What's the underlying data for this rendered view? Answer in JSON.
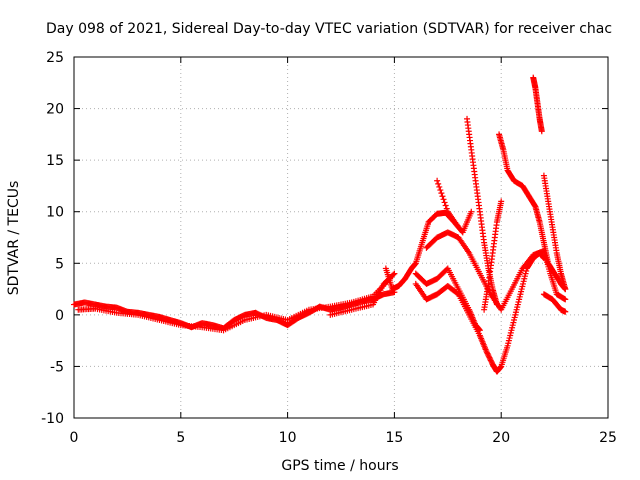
{
  "chart_data": {
    "type": "scatter",
    "title": "Day 098 of 2021, Sidereal Day-to-day VTEC variation (SDTVAR) for receiver chac",
    "xlabel": "GPS time / hours",
    "ylabel": "SDTVAR / TECUs",
    "xlim": [
      0,
      25
    ],
    "ylim": [
      -10,
      25
    ],
    "xticks": [
      0,
      5,
      10,
      15,
      20,
      25
    ],
    "yticks": [
      -10,
      -5,
      0,
      5,
      10,
      15,
      20,
      25
    ],
    "xtick_labels": [
      "0",
      "5",
      "10",
      "15",
      "20",
      "25"
    ],
    "ytick_labels": [
      "-10",
      "-5",
      "0",
      "5",
      "10",
      "15",
      "20",
      "25"
    ],
    "grid": true,
    "marker": "+",
    "color": "#ff0000",
    "series": [
      {
        "name": "trace-0",
        "points": [
          [
            0,
            1.0
          ],
          [
            0.5,
            1.2
          ],
          [
            1.0,
            1.0
          ],
          [
            1.5,
            0.8
          ],
          [
            2.0,
            0.7
          ],
          [
            2.5,
            0.3
          ],
          [
            3.0,
            0.2
          ],
          [
            3.5,
            0.0
          ],
          [
            4.0,
            -0.2
          ],
          [
            4.5,
            -0.5
          ],
          [
            5.0,
            -0.8
          ],
          [
            5.5,
            -1.2
          ],
          [
            6.0,
            -0.8
          ],
          [
            6.5,
            -1.0
          ],
          [
            7.0,
            -1.3
          ],
          [
            7.5,
            -0.5
          ],
          [
            8.0,
            0.0
          ],
          [
            8.5,
            0.2
          ],
          [
            9.0,
            -0.3
          ],
          [
            9.5,
            -0.5
          ],
          [
            10.0,
            -1.0
          ],
          [
            10.5,
            -0.3
          ],
          [
            11.0,
            0.2
          ],
          [
            11.5,
            0.8
          ],
          [
            12.0,
            0.5
          ],
          [
            12.5,
            0.7
          ],
          [
            13.0,
            1.0
          ],
          [
            13.5,
            1.3
          ],
          [
            14.0,
            1.5
          ],
          [
            14.5,
            2.0
          ],
          [
            15.0,
            2.2
          ]
        ]
      },
      {
        "name": "trace-1",
        "points": [
          [
            0.2,
            0.5
          ],
          [
            1.0,
            0.6
          ],
          [
            2.0,
            0.2
          ],
          [
            3.0,
            0.0
          ],
          [
            4.0,
            -0.5
          ],
          [
            5.0,
            -1.0
          ],
          [
            6.0,
            -1.2
          ],
          [
            7.0,
            -1.5
          ],
          [
            8.0,
            -0.5
          ],
          [
            9.0,
            0.0
          ],
          [
            10.0,
            -0.5
          ],
          [
            11.0,
            0.5
          ],
          [
            12.0,
            0.8
          ],
          [
            13.0,
            1.2
          ],
          [
            14.0,
            1.8
          ],
          [
            14.8,
            3.5
          ]
        ]
      },
      {
        "name": "trace-2",
        "points": [
          [
            14.6,
            4.5
          ],
          [
            14.9,
            2.5
          ],
          [
            15.2,
            2.8
          ],
          [
            15.5,
            3.5
          ],
          [
            15.8,
            4.5
          ],
          [
            16.0,
            5.0
          ],
          [
            16.3,
            7.0
          ],
          [
            16.6,
            9.0
          ],
          [
            17.0,
            9.8
          ],
          [
            17.4,
            9.9
          ],
          [
            17.8,
            9.0
          ],
          [
            18.2,
            8.0
          ],
          [
            18.6,
            10.0
          ]
        ]
      },
      {
        "name": "trace-3",
        "points": [
          [
            17.0,
            13.0
          ],
          [
            17.5,
            10.0
          ],
          [
            18.0,
            8.5
          ]
        ]
      },
      {
        "name": "trace-4",
        "points": [
          [
            16.0,
            3.0
          ],
          [
            16.5,
            1.5
          ],
          [
            17.0,
            2.0
          ],
          [
            17.5,
            2.8
          ],
          [
            18.0,
            2.0
          ],
          [
            18.5,
            0.0
          ],
          [
            19.0,
            -2.0
          ],
          [
            19.3,
            -3.5
          ],
          [
            19.6,
            -4.8
          ],
          [
            19.8,
            -5.5
          ],
          [
            20.0,
            -5.0
          ],
          [
            20.3,
            -3.0
          ],
          [
            20.6,
            -0.5
          ],
          [
            20.9,
            2.0
          ],
          [
            21.2,
            4.5
          ],
          [
            21.5,
            5.5
          ],
          [
            21.8,
            6.0
          ],
          [
            22.0,
            5.5
          ]
        ]
      },
      {
        "name": "trace-5",
        "points": [
          [
            16.5,
            6.5
          ],
          [
            17.0,
            7.5
          ],
          [
            17.5,
            8.0
          ],
          [
            18.0,
            7.5
          ],
          [
            18.5,
            6.0
          ],
          [
            19.0,
            4.0
          ],
          [
            19.5,
            2.0
          ],
          [
            20.0,
            0.5
          ],
          [
            20.5,
            2.5
          ],
          [
            21.0,
            4.5
          ],
          [
            21.5,
            5.8
          ],
          [
            22.0,
            6.2
          ],
          [
            22.3,
            4.0
          ],
          [
            22.6,
            2.0
          ],
          [
            23.0,
            1.5
          ]
        ]
      },
      {
        "name": "trace-6",
        "points": [
          [
            16.0,
            4.0
          ],
          [
            16.5,
            3.0
          ],
          [
            17.0,
            3.5
          ],
          [
            17.5,
            4.5
          ],
          [
            18.0,
            2.5
          ],
          [
            18.5,
            0.5
          ],
          [
            18.8,
            -1.0
          ],
          [
            19.0,
            -1.5
          ]
        ]
      },
      {
        "name": "trace-7",
        "points": [
          [
            18.4,
            19.0
          ],
          [
            18.6,
            16.0
          ],
          [
            18.8,
            13.0
          ],
          [
            19.0,
            10.0
          ],
          [
            19.2,
            7.0
          ],
          [
            19.4,
            4.5
          ],
          [
            19.6,
            2.5
          ],
          [
            19.8,
            1.0
          ]
        ]
      },
      {
        "name": "trace-8",
        "points": [
          [
            19.9,
            17.5
          ],
          [
            20.1,
            16.0
          ],
          [
            20.3,
            14.0
          ],
          [
            20.6,
            13.0
          ],
          [
            21.0,
            12.5
          ],
          [
            21.3,
            11.5
          ],
          [
            21.6,
            10.5
          ],
          [
            21.8,
            9.0
          ],
          [
            22.0,
            7.0
          ],
          [
            22.2,
            5.0
          ],
          [
            22.5,
            4.0
          ],
          [
            22.8,
            3.0
          ],
          [
            23.0,
            2.5
          ]
        ]
      },
      {
        "name": "trace-9",
        "points": [
          [
            20.0,
            11.0
          ],
          [
            19.8,
            9.0
          ],
          [
            19.6,
            6.0
          ],
          [
            19.4,
            3.0
          ],
          [
            19.2,
            0.5
          ]
        ]
      },
      {
        "name": "trace-10",
        "points": [
          [
            21.5,
            23.0
          ],
          [
            21.6,
            22.0
          ],
          [
            21.7,
            20.5
          ],
          [
            21.8,
            19.0
          ],
          [
            21.9,
            17.8
          ]
        ]
      },
      {
        "name": "trace-11",
        "points": [
          [
            22.0,
            13.5
          ],
          [
            22.2,
            11.0
          ],
          [
            22.4,
            8.5
          ],
          [
            22.6,
            6.0
          ],
          [
            22.8,
            4.0
          ],
          [
            23.0,
            2.5
          ]
        ]
      },
      {
        "name": "trace-12",
        "points": [
          [
            22.0,
            2.0
          ],
          [
            22.4,
            1.5
          ],
          [
            22.8,
            0.5
          ],
          [
            23.0,
            0.3
          ]
        ]
      },
      {
        "name": "trace-13",
        "points": [
          [
            12.0,
            0.0
          ],
          [
            13.0,
            0.5
          ],
          [
            14.0,
            1.0
          ],
          [
            14.5,
            3.0
          ],
          [
            15.0,
            4.0
          ]
        ]
      }
    ]
  }
}
